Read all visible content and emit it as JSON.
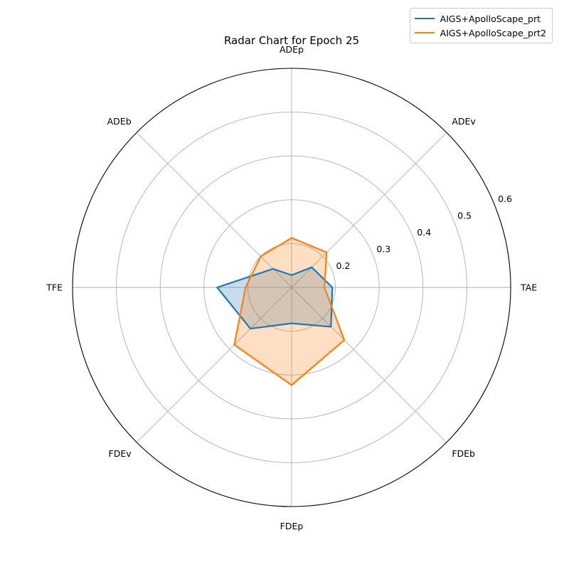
{
  "chart_data": {
    "type": "radar",
    "title": "Radar Chart for Epoch 25",
    "categories": [
      "TAE",
      "ADEv",
      "ADEp",
      "ADEb",
      "TFE",
      "FDEv",
      "FDEp",
      "FDEb"
    ],
    "radial_ticks": [
      "0.2",
      "0.3",
      "0.4",
      "0.5",
      "0.6"
    ],
    "radial_tick_values": [
      0.2,
      0.3,
      0.4,
      0.5,
      0.6
    ],
    "rlim": [
      0.1,
      0.6
    ],
    "grid": true,
    "legend_position": "top-right",
    "series": [
      {
        "name": "AIGS+ApolloScape_prt",
        "color": "#1f77b4",
        "values": [
          0.193,
          0.165,
          0.128,
          0.16,
          0.27,
          0.233,
          0.182,
          0.227
        ]
      },
      {
        "name": "AIGS+ApolloScape_prt2",
        "color": "#ff7f0e",
        "values": [
          0.175,
          0.213,
          0.213,
          0.2,
          0.205,
          0.285,
          0.323,
          0.27
        ]
      }
    ]
  }
}
